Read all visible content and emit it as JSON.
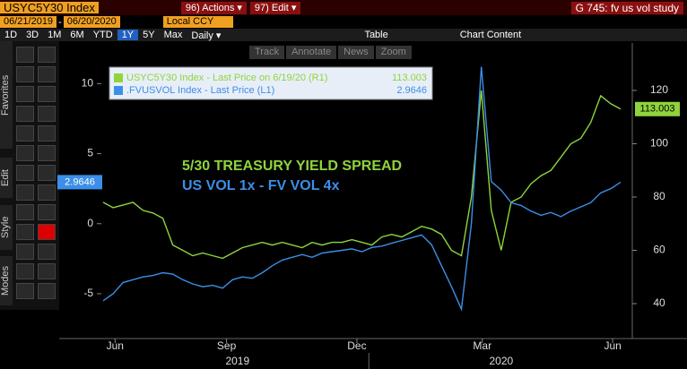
{
  "ui": {
    "ticker": "USYC5Y30 Index",
    "actions": "96) Actions ▾",
    "edit": "97) Edit ▾",
    "screen": "G 745: fv us vol study",
    "start_date": "06/21/2019",
    "date_sep": "-",
    "end_date": "06/20/2020",
    "currency": "Local CCY",
    "ranges": [
      "1D",
      "3D",
      "1M",
      "6M",
      "YTD",
      "1Y",
      "5Y",
      "Max"
    ],
    "frequency": "Daily ▾",
    "table": "Table",
    "chart_content": "Chart Content",
    "tools": [
      "Track",
      "Annotate",
      "News",
      "Zoom"
    ],
    "side_tabs": [
      "Favorites",
      "Edit",
      "Style",
      "Modes"
    ]
  },
  "chart_data": {
    "type": "line",
    "annotations": [
      "5/30 TREASURY YIELD SPREAD",
      "US VOL 1x - FV VOL 4x"
    ],
    "xlim": [
      0,
      52
    ],
    "xticks": [
      {
        "value": 1.2,
        "label": "Jun"
      },
      {
        "value": 12.4,
        "label": "Sep"
      },
      {
        "value": 25.5,
        "label": "Dec"
      },
      {
        "value": 38.1,
        "label": "Mar"
      },
      {
        "value": 51.2,
        "label": "Jun"
      }
    ],
    "year_labels": [
      {
        "value": 13.5,
        "label": "2019"
      },
      {
        "value": 40,
        "label": "2020"
      }
    ],
    "ylim": [
      -8.2,
      12.9
    ],
    "yticks": [
      -5,
      0,
      5,
      10
    ],
    "y2lim": [
      26.9,
      137.8
    ],
    "y2ticks": [
      40,
      60,
      80,
      100,
      120
    ],
    "series": [
      {
        "name": "USYC5Y30 Index - Last Price on 6/19/20 (R1)",
        "color": "#8fd43c",
        "axis": "y2",
        "values": [
          78,
          76,
          77,
          78,
          75,
          74,
          72,
          62,
          60,
          58,
          59,
          58,
          57,
          59,
          61,
          62,
          63,
          62,
          63,
          62,
          61,
          63,
          62,
          63,
          63,
          64,
          63,
          62,
          65,
          66,
          65,
          67,
          69,
          68,
          66,
          60,
          58,
          80,
          120,
          75,
          60,
          78,
          80,
          85,
          88,
          90,
          95,
          100,
          102,
          108,
          118,
          115,
          113.003
        ]
      },
      {
        "name": ".FVUSVOL Index - Last Price (L1)",
        "color": "#3b8fe8",
        "values": [
          -5.5,
          -5,
          -4.2,
          -4,
          -3.8,
          -3.7,
          -3.5,
          -3.6,
          -4,
          -4.3,
          -4.5,
          -4.4,
          -4.6,
          -4,
          -3.8,
          -3.9,
          -3.5,
          -3,
          -2.6,
          -2.4,
          -2.2,
          -2.4,
          -2.1,
          -2,
          -1.9,
          -1.8,
          -2,
          -1.7,
          -1.6,
          -1.4,
          -1.2,
          -1,
          -0.8,
          -1.5,
          -3,
          -4.5,
          -6.1,
          0,
          11.2,
          3,
          2.4,
          1.5,
          1.3,
          0.9,
          0.6,
          0.8,
          0.5,
          0.9,
          1.2,
          1.5,
          2.2,
          2.5,
          2.9646
        ]
      }
    ]
  }
}
